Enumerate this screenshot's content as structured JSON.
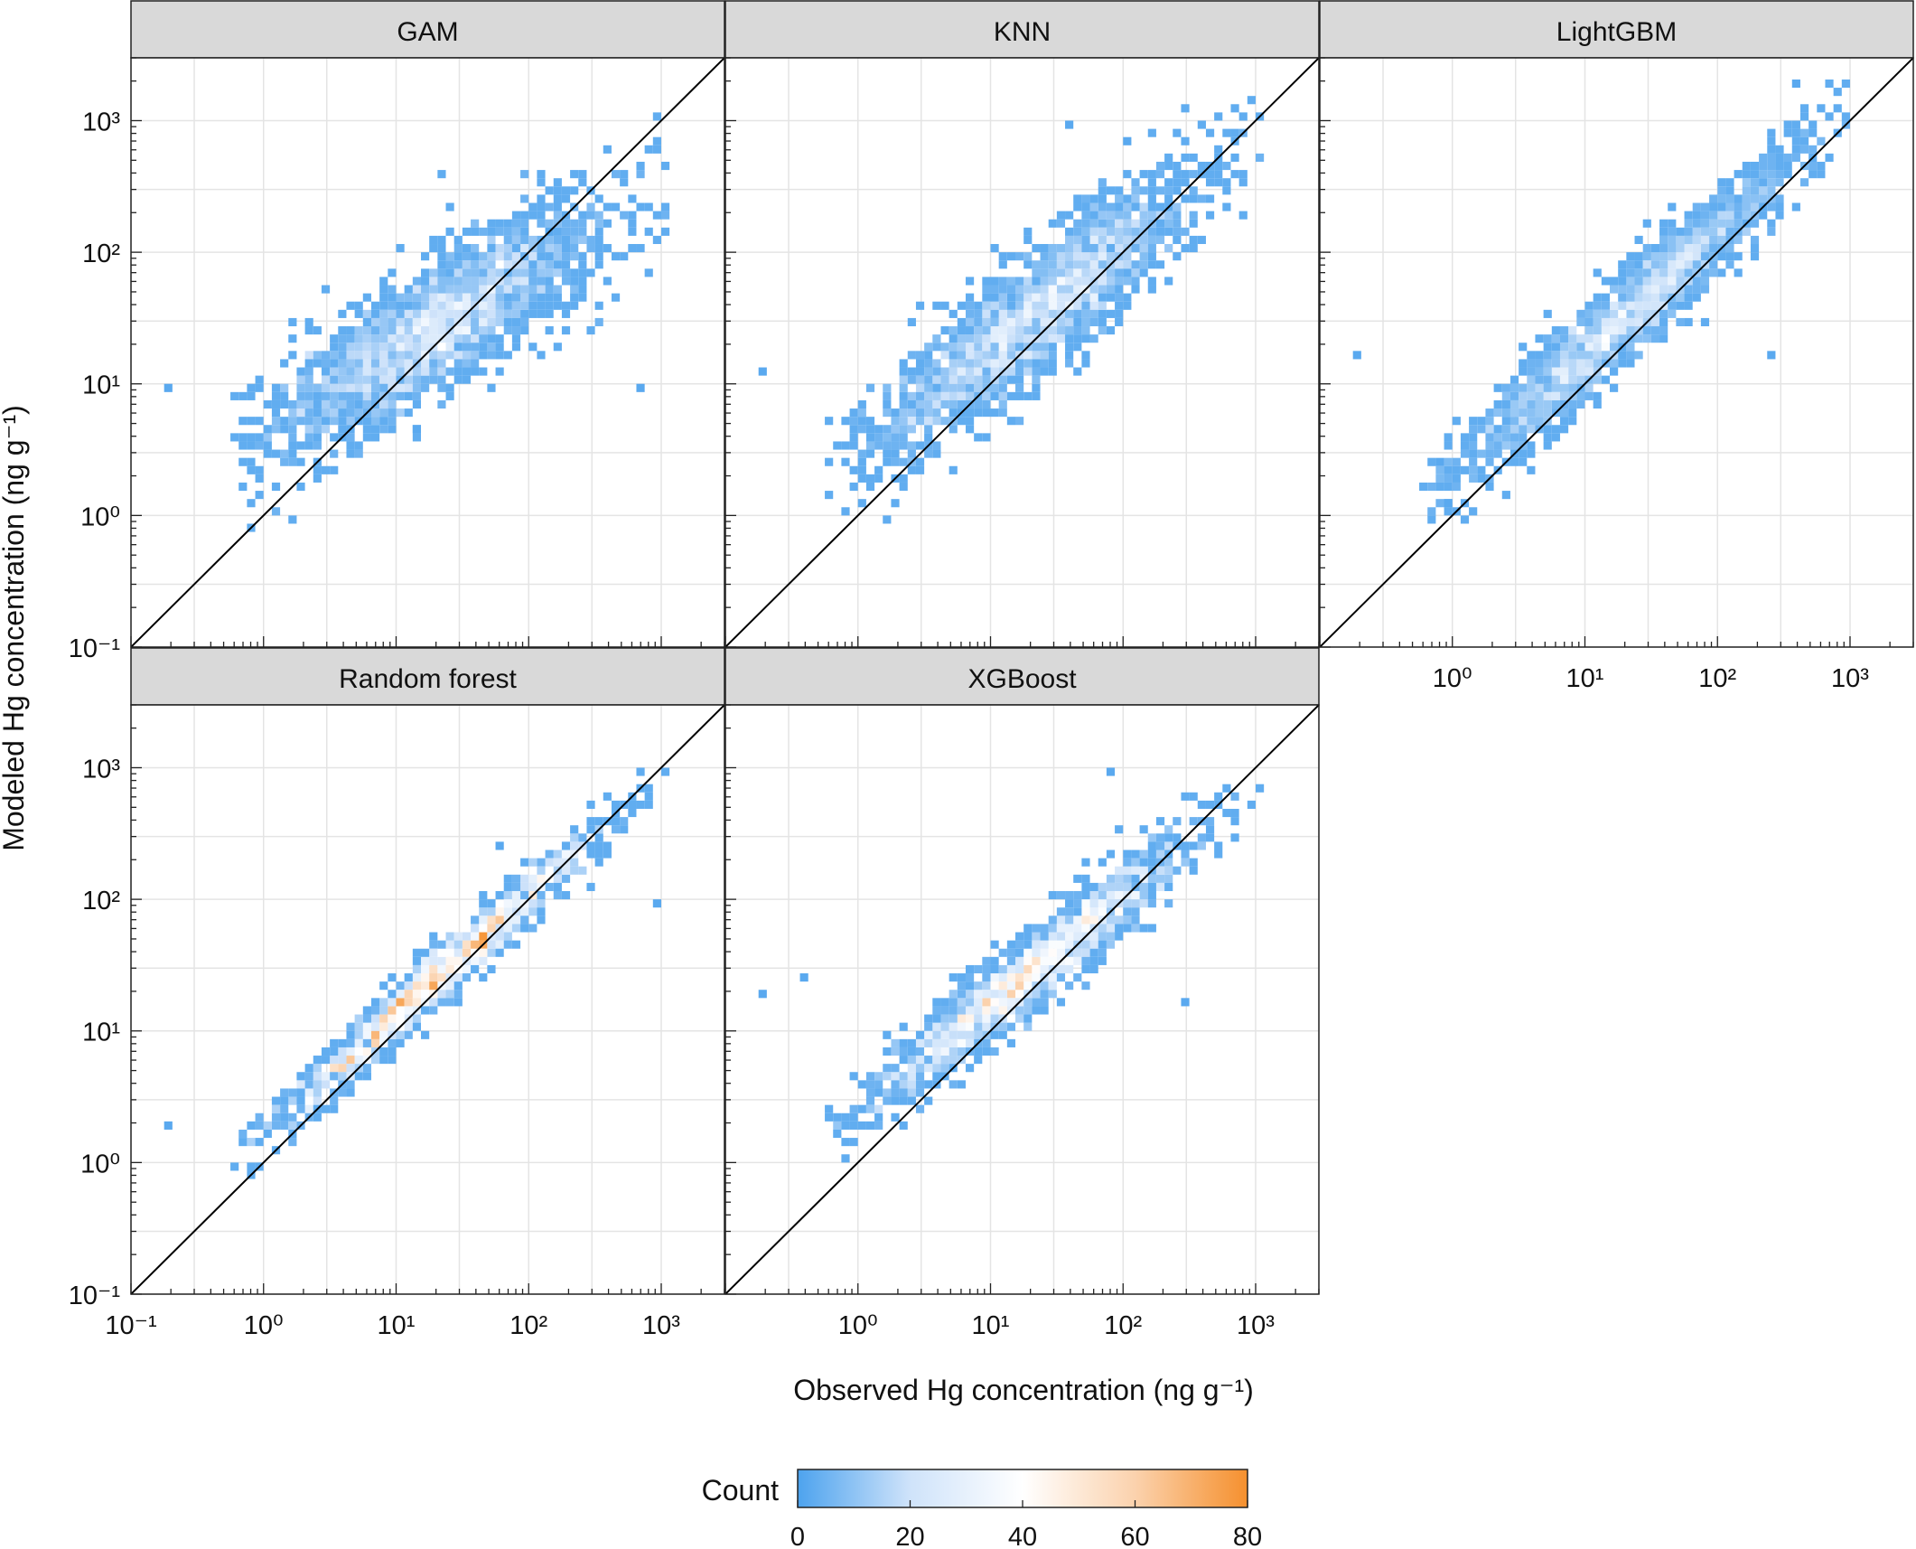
{
  "chart_data": {
    "type": "heatmap",
    "x_label": "Observed Hg concentration (ng g⁻¹)",
    "y_label": "Modeled Hg concentration (ng g⁻¹)",
    "x_scale": "log10",
    "y_scale": "log10",
    "x_range": [
      0.1,
      3000
    ],
    "y_range": [
      0.1,
      3000
    ],
    "tick_exponents": [
      -1,
      0,
      1,
      2,
      3
    ],
    "grid": true,
    "reference_line": "1:1 (y = x)",
    "bin_width_log10": 0.0625,
    "panels": [
      {
        "name": "GAM",
        "spread": 0.25,
        "slope": 0.62,
        "intercept": 0.62,
        "cells": 340,
        "peak": 34,
        "seed": 11,
        "outliers": [
          [
            0.2,
            8.8
          ],
          [
            700,
            8.8
          ],
          [
            15,
            4.3
          ],
          [
            150,
            150
          ]
        ]
      },
      {
        "name": "KNN",
        "spread": 0.23,
        "slope": 0.78,
        "intercept": 0.48,
        "cells": 340,
        "peak": 36,
        "seed": 23,
        "outliers": [
          [
            0.2,
            12
          ],
          [
            100,
            700
          ],
          [
            40,
            900
          ]
        ]
      },
      {
        "name": "LightGBM",
        "spread": 0.17,
        "slope": 0.92,
        "intercept": 0.3,
        "cells": 300,
        "peak": 40,
        "seed": 37,
        "outliers": [
          [
            0.2,
            16.5
          ],
          [
            0.8,
            2.6
          ],
          [
            0.9,
            1.3
          ],
          [
            400,
            1800
          ],
          [
            250,
            16.5
          ]
        ]
      },
      {
        "name": "Random forest",
        "spread": 0.11,
        "slope": 0.9,
        "intercept": 0.22,
        "cells": 220,
        "peak": 78,
        "seed": 41,
        "outliers": [
          [
            0.2,
            1.8
          ],
          [
            900,
            95
          ],
          [
            60,
            250
          ]
        ]
      },
      {
        "name": "XGBoost",
        "spread": 0.15,
        "slope": 0.82,
        "intercept": 0.38,
        "cells": 280,
        "peak": 60,
        "seed": 53,
        "outliers": [
          [
            0.2,
            20
          ],
          [
            0.4,
            24
          ],
          [
            80,
            900
          ],
          [
            300,
            16.5
          ]
        ]
      }
    ],
    "colorbar": {
      "title": "Count",
      "min": 0,
      "max": 80,
      "ticks": [
        0,
        20,
        40,
        60,
        80
      ],
      "colors": [
        "#4da3ee",
        "#cfe3fa",
        "#ffffff",
        "#fbd2ad",
        "#f5902e"
      ]
    }
  }
}
